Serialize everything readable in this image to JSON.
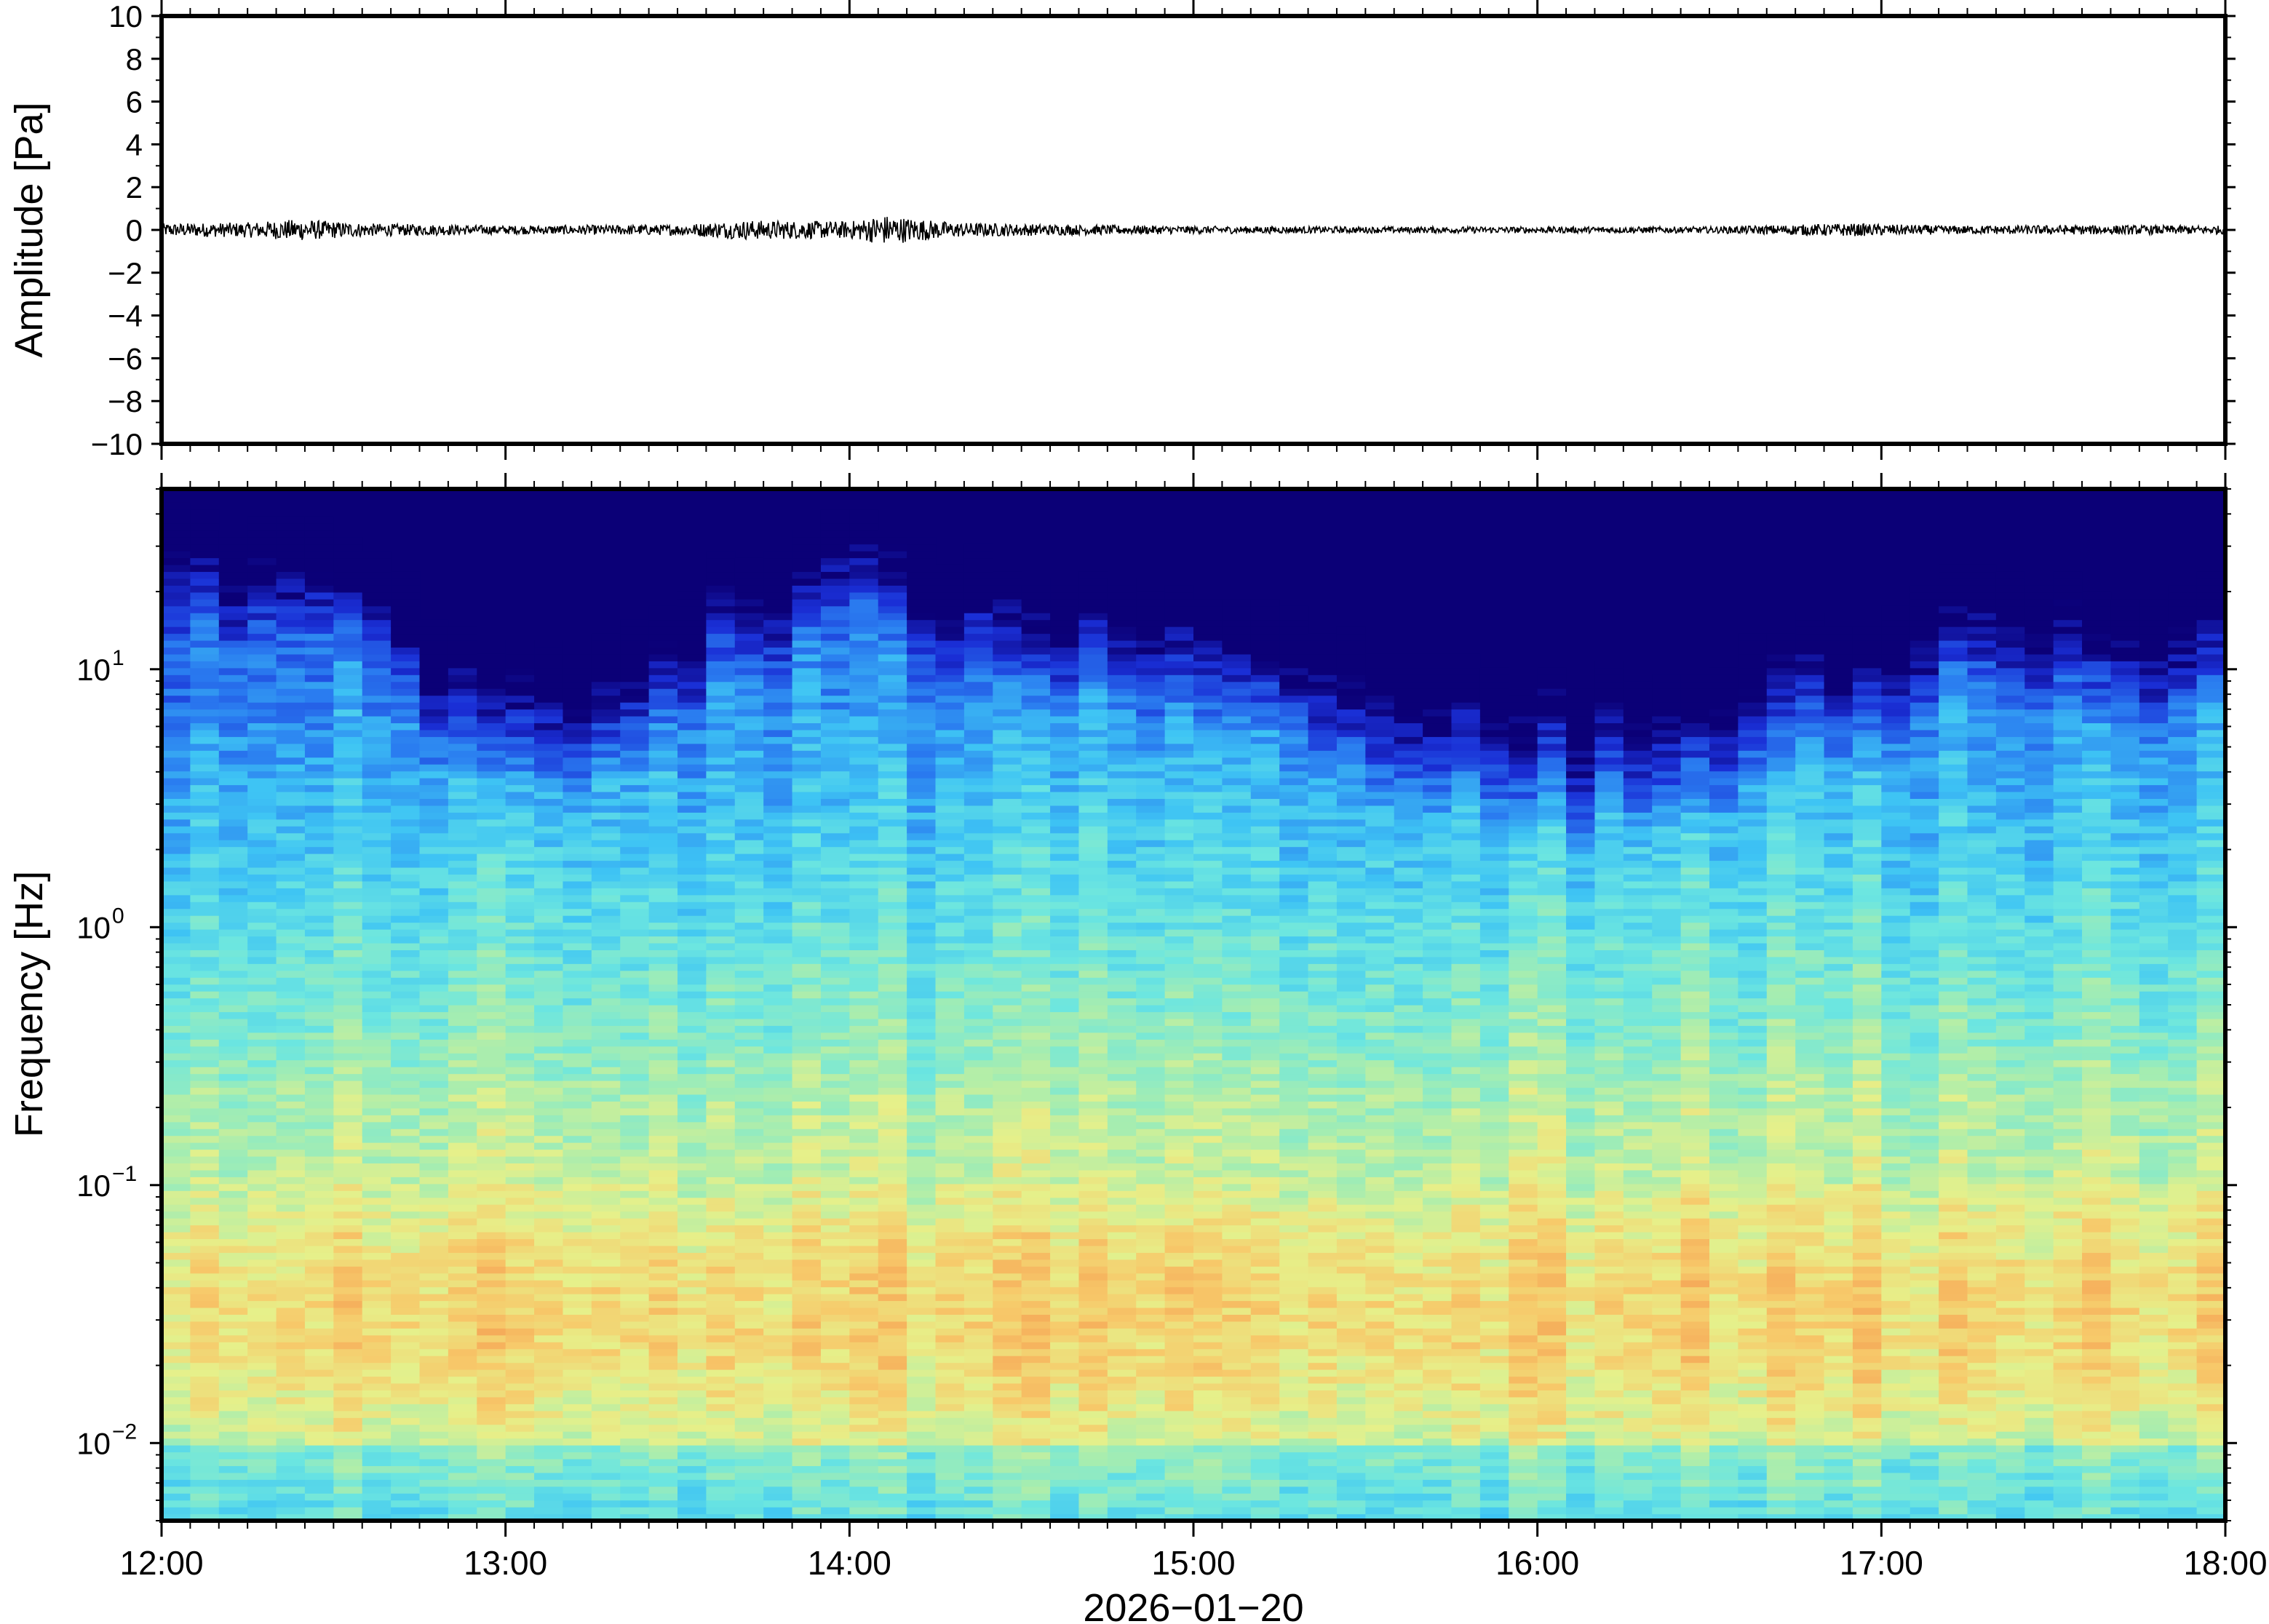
{
  "chart_data": [
    {
      "type": "line",
      "panel": "waveform",
      "ylabel": "Amplitude [Pa]",
      "ylim": [
        -10,
        10
      ],
      "yticks": [
        10,
        8,
        6,
        4,
        2,
        0,
        -2,
        -4,
        -6,
        -8,
        -10
      ],
      "ytick_labels": [
        "10",
        "8",
        "6",
        "4",
        "2",
        "0",
        "−2",
        "−4",
        "−6",
        "−8",
        "−10"
      ],
      "x_range": [
        "12:00",
        "18:00"
      ],
      "trace_color": "#000000",
      "envelope": {
        "hours": [
          12.0,
          12.25,
          12.4,
          12.6,
          13.0,
          13.5,
          13.7,
          14.0,
          14.1,
          14.3,
          14.6,
          15.0,
          15.5,
          16.0,
          16.5,
          16.9,
          17.2,
          17.6,
          18.0
        ],
        "amplitude_pa": [
          0.3,
          0.35,
          0.5,
          0.3,
          0.2,
          0.25,
          0.45,
          0.4,
          0.7,
          0.35,
          0.25,
          0.18,
          0.15,
          0.15,
          0.15,
          0.3,
          0.2,
          0.22,
          0.2
        ]
      }
    },
    {
      "type": "heatmap",
      "panel": "spectrogram",
      "ylabel": "Frequency [Hz]",
      "yscale": "log",
      "ylim": [
        0.005,
        50
      ],
      "yticks": [
        {
          "base": "10",
          "exp": "1",
          "value": 10
        },
        {
          "base": "10",
          "exp": "0",
          "value": 1
        },
        {
          "base": "10",
          "exp": "−1",
          "value": 0.1
        },
        {
          "base": "10",
          "exp": "−2",
          "value": 0.01
        }
      ],
      "colormap": [
        "#0b0077",
        "#1a2fd6",
        "#2a7cf0",
        "#3ec4f4",
        "#6ce6e0",
        "#a6edb0",
        "#e6f08a",
        "#f7c96a",
        "#f49a50"
      ],
      "noise_cutoff_hz": {
        "hours": [
          12.0,
          12.3,
          12.45,
          12.8,
          13.0,
          13.3,
          13.5,
          13.75,
          14.05,
          14.3,
          14.6,
          15.0,
          15.5,
          16.0,
          16.5,
          16.9,
          17.2,
          17.6,
          18.0
        ],
        "hz": [
          22,
          20,
          22,
          9,
          7,
          7,
          12,
          18,
          22,
          16,
          13,
          11,
          7,
          5,
          6,
          9,
          13,
          12,
          12
        ]
      },
      "xticks": [
        "12:00",
        "13:00",
        "14:00",
        "15:00",
        "16:00",
        "17:00",
        "18:00"
      ],
      "xlabel": "2026−01−20"
    }
  ]
}
